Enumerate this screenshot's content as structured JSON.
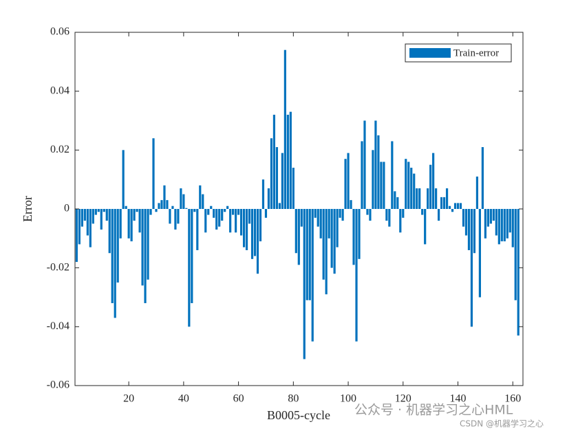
{
  "chart_data": {
    "type": "bar",
    "xlabel": "B0005-cycle",
    "ylabel": "Error",
    "x": [
      1,
      2,
      3,
      4,
      5,
      6,
      7,
      8,
      9,
      10,
      11,
      12,
      13,
      14,
      15,
      16,
      17,
      18,
      19,
      20,
      21,
      22,
      23,
      24,
      25,
      26,
      27,
      28,
      29,
      30,
      31,
      32,
      33,
      34,
      35,
      36,
      37,
      38,
      39,
      40,
      41,
      42,
      43,
      44,
      45,
      46,
      47,
      48,
      49,
      50,
      51,
      52,
      53,
      54,
      55,
      56,
      57,
      58,
      59,
      60,
      61,
      62,
      63,
      64,
      65,
      66,
      67,
      68,
      69,
      70,
      71,
      72,
      73,
      74,
      75,
      76,
      77,
      78,
      79,
      80,
      81,
      82,
      83,
      84,
      85,
      86,
      87,
      88,
      89,
      90,
      91,
      92,
      93,
      94,
      95,
      96,
      97,
      98,
      99,
      100,
      101,
      102,
      103,
      104,
      105,
      106,
      107,
      108,
      109,
      110,
      111,
      112,
      113,
      114,
      115,
      116,
      117,
      118,
      119,
      120,
      121,
      122,
      123,
      124,
      125,
      126,
      127,
      128,
      129,
      130,
      131,
      132,
      133,
      134,
      135,
      136,
      137,
      138,
      139,
      140,
      141,
      142,
      143,
      144,
      145,
      146,
      147,
      148,
      149,
      150,
      151,
      152,
      153,
      154,
      155,
      156,
      157,
      158,
      159,
      160,
      161,
      162
    ],
    "series": [
      {
        "name": "Train-error",
        "color": "#0072bd",
        "values": [
          -0.018,
          -0.012,
          -0.006,
          -0.004,
          -0.009,
          -0.013,
          -0.005,
          -0.002,
          -0.001,
          -0.007,
          -0.001,
          -0.004,
          -0.015,
          -0.032,
          -0.037,
          -0.025,
          -0.01,
          0.02,
          0.001,
          -0.01,
          -0.011,
          -0.004,
          -0.001,
          -0.008,
          -0.026,
          -0.032,
          -0.024,
          -0.002,
          0.024,
          -0.001,
          0.002,
          0.003,
          0.008,
          0.003,
          -0.005,
          0.001,
          -0.007,
          -0.005,
          0.007,
          0.005,
          0.0003,
          -0.04,
          -0.032,
          -0.001,
          -0.014,
          0.008,
          0.005,
          -0.008,
          -0.002,
          0.001,
          -0.003,
          -0.007,
          -0.006,
          -0.004,
          -0.001,
          0.001,
          -0.008,
          -0.002,
          -0.008,
          -0.002,
          -0.009,
          -0.013,
          -0.014,
          -0.005,
          -0.017,
          -0.016,
          -0.022,
          -0.011,
          0.01,
          -0.003,
          0.007,
          0.024,
          0.032,
          0.021,
          0.002,
          0.019,
          0.054,
          0.032,
          0.033,
          0.014,
          -0.015,
          -0.019,
          -0.006,
          -0.051,
          -0.031,
          -0.031,
          -0.045,
          -0.003,
          -0.006,
          -0.01,
          -0.024,
          -0.029,
          -0.01,
          -0.02,
          -0.022,
          -0.013,
          -0.003,
          -0.004,
          0.017,
          0.019,
          0.003,
          -0.019,
          -0.045,
          -0.017,
          0.023,
          0.03,
          -0.002,
          -0.004,
          0.02,
          0.03,
          0.025,
          0.016,
          0.016,
          -0.004,
          -0.006,
          0.023,
          0.006,
          0.004,
          -0.008,
          -0.003,
          0.017,
          0.016,
          0.014,
          0.012,
          0.007,
          0.007,
          -0.002,
          -0.012,
          0.007,
          0.015,
          0.019,
          0.007,
          -0.004,
          0.004,
          0.004,
          0.007,
          0.001,
          -0.001,
          0.002,
          0.002,
          0.002,
          -0.006,
          -0.009,
          -0.014,
          -0.04,
          -0.015,
          0.011,
          -0.03,
          0.021,
          -0.01,
          -0.006,
          -0.005,
          -0.004,
          -0.009,
          -0.012,
          -0.011,
          -0.011,
          -0.01,
          -0.008,
          -0.013,
          -0.031,
          -0.043
        ]
      }
    ],
    "xlim": [
      0.4,
      163.7
    ],
    "xticks": [
      20,
      40,
      60,
      80,
      100,
      120,
      140,
      160
    ],
    "ylim": [
      -0.06,
      0.06
    ],
    "yticks": [
      -0.06,
      -0.04,
      -0.02,
      0,
      0.02,
      0.04,
      0.06
    ],
    "legend": "upper right",
    "watermark": [
      "公众号 · 机器学习之心HML",
      "CSDN @机器学习之心"
    ]
  }
}
